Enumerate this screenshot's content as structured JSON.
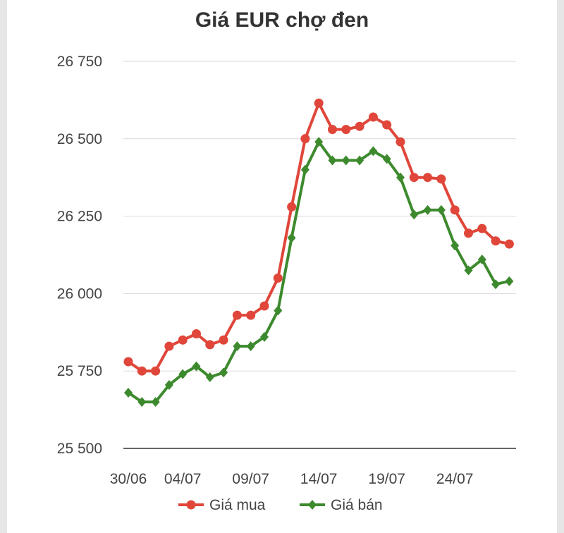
{
  "chart_data": {
    "type": "line",
    "title": "Giá EUR chợ đen",
    "xlabel": "",
    "ylabel": "",
    "ylim": [
      25500,
      26750
    ],
    "yticks": [
      25500,
      25750,
      26000,
      26250,
      26500,
      26750
    ],
    "ytick_labels": [
      "25 500",
      "25 750",
      "26 000",
      "26 250",
      "26 500",
      "26 750"
    ],
    "x": [
      "30/06",
      "01/07",
      "02/07",
      "03/07",
      "04/07",
      "05/07",
      "06/07",
      "07/07",
      "08/07",
      "09/07",
      "10/07",
      "11/07",
      "12/07",
      "13/07",
      "14/07",
      "15/07",
      "16/07",
      "17/07",
      "18/07",
      "19/07",
      "20/07",
      "21/07",
      "22/07",
      "23/07",
      "24/07",
      "25/07",
      "26/07",
      "27/07",
      "28/07"
    ],
    "xtick_labels": [
      "30/06",
      "04/07",
      "09/07",
      "14/07",
      "19/07",
      "24/07"
    ],
    "grid": true,
    "legend": "bottom",
    "series": [
      {
        "name": "Giá mua",
        "color": "#e0463a",
        "marker": "circle",
        "values": [
          25780,
          25750,
          25750,
          25830,
          25850,
          25870,
          25835,
          25850,
          25930,
          25930,
          25960,
          26050,
          26280,
          26500,
          26615,
          26530,
          26530,
          26540,
          26570,
          26545,
          26490,
          26375,
          26375,
          26370,
          26270,
          26195,
          26210,
          26170,
          26160
        ]
      },
      {
        "name": "Giá bán",
        "color": "#3d8a2e",
        "marker": "diamond",
        "values": [
          25680,
          25650,
          25650,
          25705,
          25740,
          25765,
          25730,
          25745,
          25830,
          25830,
          25860,
          25945,
          26180,
          26400,
          26490,
          26430,
          26430,
          26430,
          26460,
          26435,
          26375,
          26255,
          26270,
          26270,
          26155,
          26075,
          26110,
          26030,
          26040
        ]
      }
    ]
  }
}
